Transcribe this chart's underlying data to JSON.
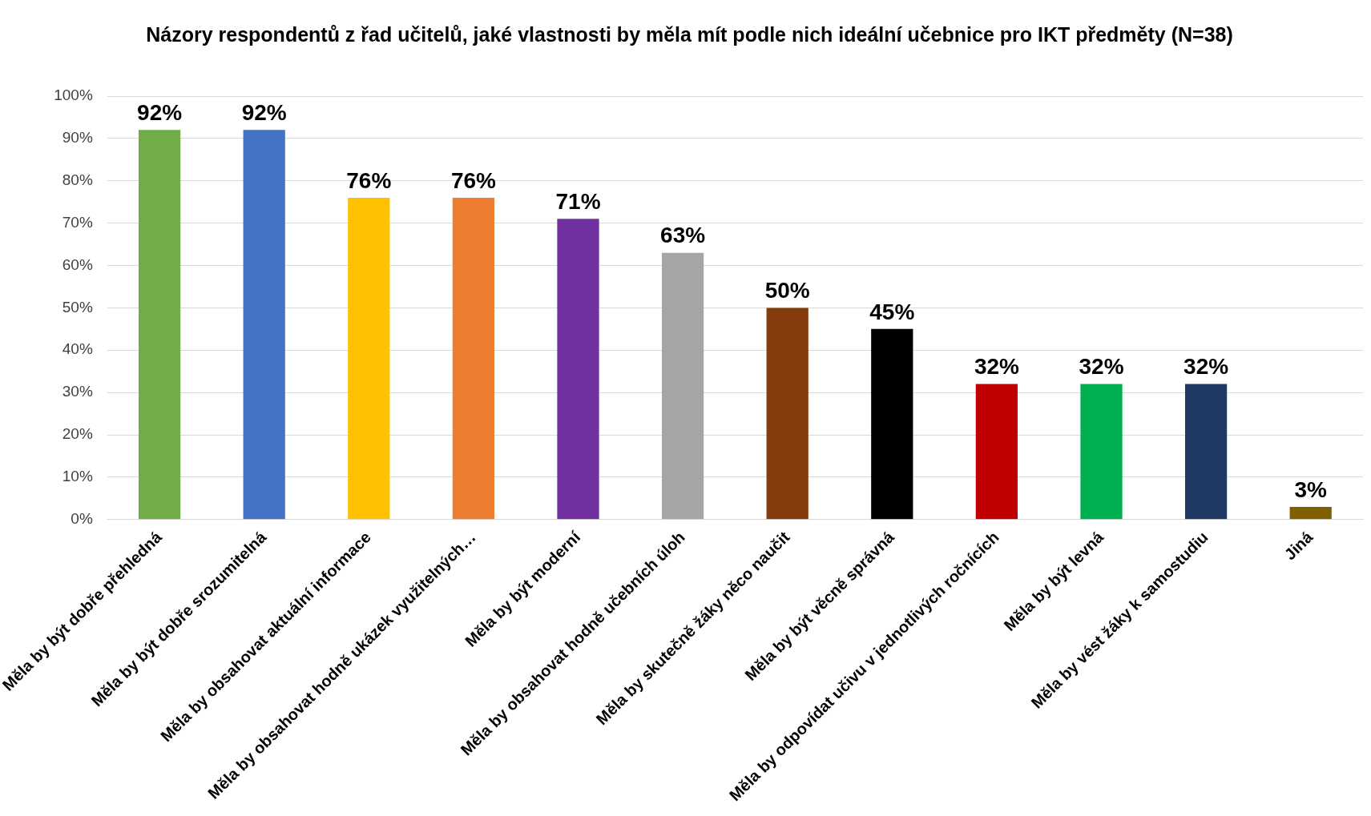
{
  "chart_data": {
    "type": "bar",
    "title": "Názory respondentů z řad učitelů, jaké vlastnosti by měla mít podle nich ideální učebnice pro IKT předměty (N=38)",
    "categories": [
      "Měla by být dobře přehledná",
      "Měla by být dobře srozumitelná",
      "Měla by obsahovat aktuální informace",
      "Měla by obsahovat hodně ukázek využitelných…",
      "Měla by být moderní",
      "Měla by obsahovat hodně učebních úloh",
      "Měla by skutečně žáky něco naučit",
      "Měla by být věcně správná",
      "Měla by odpovídat učivu v jednotlivých ročnících",
      "Měla by být levná",
      "Měla by vést žáky k samostudiu",
      "Jiná"
    ],
    "values": [
      92,
      92,
      76,
      76,
      71,
      63,
      50,
      45,
      32,
      32,
      32,
      3
    ],
    "value_labels": [
      "92%",
      "92%",
      "76%",
      "76%",
      "71%",
      "63%",
      "50%",
      "45%",
      "32%",
      "32%",
      "32%",
      "3%"
    ],
    "colors": [
      "#70ad47",
      "#4472c4",
      "#ffc000",
      "#ed7d31",
      "#7030a0",
      "#a5a5a5",
      "#843c0c",
      "#000000",
      "#c00000",
      "#00b050",
      "#203864",
      "#7f6000"
    ],
    "ylim": [
      0,
      100
    ],
    "yticks": [
      {
        "value": 0,
        "label": "0%"
      },
      {
        "value": 10,
        "label": "10%"
      },
      {
        "value": 20,
        "label": "20%"
      },
      {
        "value": 30,
        "label": "30%"
      },
      {
        "value": 40,
        "label": "40%"
      },
      {
        "value": 50,
        "label": "50%"
      },
      {
        "value": 60,
        "label": "60%"
      },
      {
        "value": 70,
        "label": "70%"
      },
      {
        "value": 80,
        "label": "80%"
      },
      {
        "value": 90,
        "label": "90%"
      },
      {
        "value": 100,
        "label": "100%"
      }
    ],
    "grid": "y",
    "legend": false
  }
}
